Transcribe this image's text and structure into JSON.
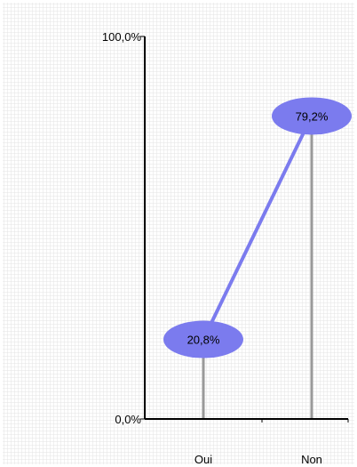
{
  "chart_data": {
    "type": "line",
    "categories": [
      "Oui",
      "Non"
    ],
    "series": [
      {
        "values": [
          20.8,
          79.2
        ],
        "data_labels": [
          "20,8%",
          "79,2%"
        ]
      }
    ],
    "y_tick_labels": [
      "100,0%",
      "0,0%"
    ],
    "ylim": [
      0,
      100
    ],
    "grid": true,
    "title": "",
    "xlabel": "",
    "ylabel": "",
    "colors": {
      "series": "#7B7BEE",
      "marker": "#7B7BEE",
      "drop_line": "#9A9A9A",
      "axis": "#000000",
      "background_grid": "#E8E8E8"
    }
  }
}
